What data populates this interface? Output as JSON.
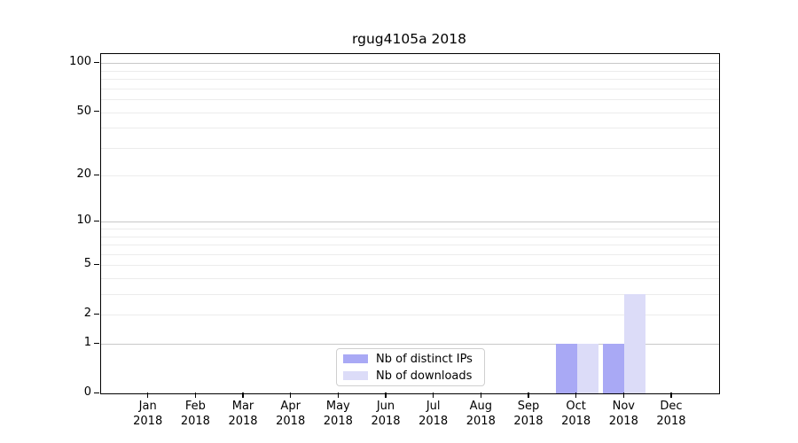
{
  "chart_data": {
    "type": "bar",
    "title": "rgug4105a 2018",
    "x_categories": [
      {
        "month": "Jan",
        "year": "2018"
      },
      {
        "month": "Feb",
        "year": "2018"
      },
      {
        "month": "Mar",
        "year": "2018"
      },
      {
        "month": "Apr",
        "year": "2018"
      },
      {
        "month": "May",
        "year": "2018"
      },
      {
        "month": "Jun",
        "year": "2018"
      },
      {
        "month": "Jul",
        "year": "2018"
      },
      {
        "month": "Aug",
        "year": "2018"
      },
      {
        "month": "Sep",
        "year": "2018"
      },
      {
        "month": "Oct",
        "year": "2018"
      },
      {
        "month": "Nov",
        "year": "2018"
      },
      {
        "month": "Dec",
        "year": "2018"
      }
    ],
    "series": [
      {
        "name": "Nb of distinct IPs",
        "color": "#a9a9f5",
        "values": [
          0,
          0,
          0,
          0,
          0,
          0,
          0,
          0,
          0,
          1,
          1,
          0
        ]
      },
      {
        "name": "Nb of downloads",
        "color": "#dcdcf8",
        "values": [
          0,
          0,
          0,
          0,
          0,
          0,
          0,
          0,
          0,
          1,
          3,
          0
        ]
      }
    ],
    "y_axis": {
      "scale": "log1p",
      "ticks": [
        0,
        1,
        2,
        5,
        10,
        20,
        50,
        100
      ],
      "max": 114
    },
    "grid": {
      "major_values": [
        1,
        10,
        100
      ],
      "minor_values": [
        2,
        3,
        4,
        5,
        6,
        7,
        8,
        9,
        20,
        30,
        40,
        50,
        60,
        70,
        80,
        90
      ],
      "major_color": "#c8c8c8",
      "minor_color": "#ececec"
    },
    "colors": {
      "axis": "#000000",
      "text": "#000000",
      "legend_border": "#cfcfcf"
    },
    "legend_position": "lower center"
  }
}
